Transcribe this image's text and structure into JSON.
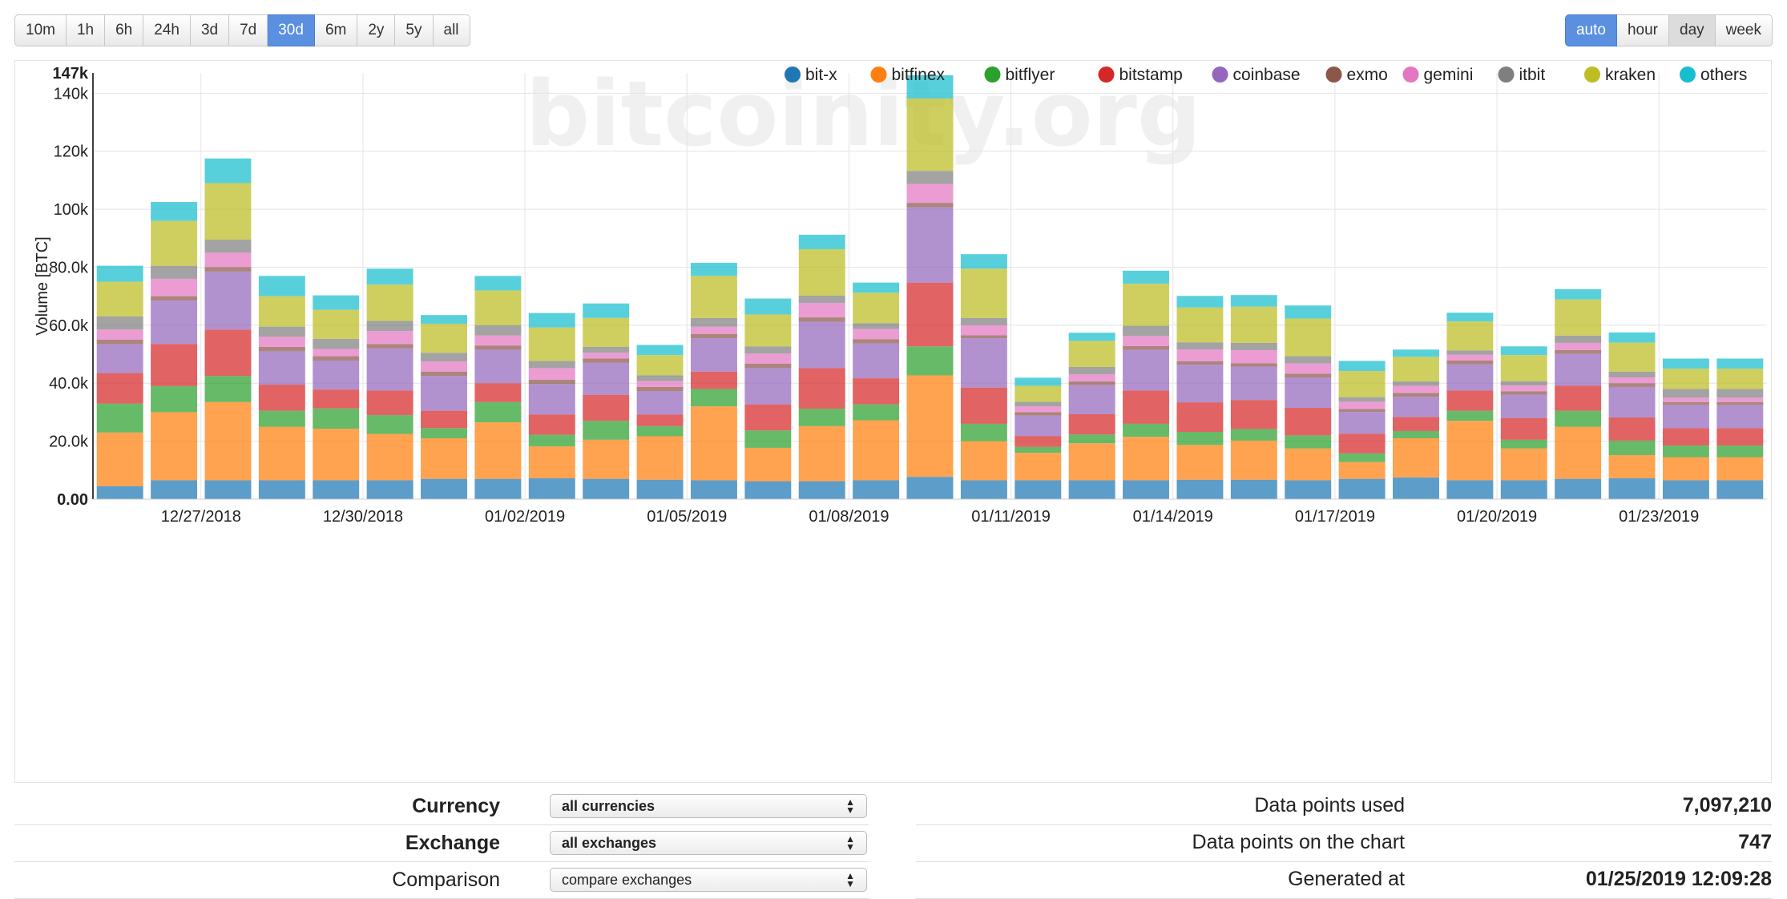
{
  "range_buttons": [
    {
      "label": "10m",
      "active": false
    },
    {
      "label": "1h",
      "active": false
    },
    {
      "label": "6h",
      "active": false
    },
    {
      "label": "24h",
      "active": false
    },
    {
      "label": "3d",
      "active": false
    },
    {
      "label": "7d",
      "active": false
    },
    {
      "label": "30d",
      "active": true
    },
    {
      "label": "6m",
      "active": false
    },
    {
      "label": "2y",
      "active": false
    },
    {
      "label": "5y",
      "active": false
    },
    {
      "label": "all",
      "active": false
    }
  ],
  "period_buttons": [
    {
      "label": "auto",
      "state": "active"
    },
    {
      "label": "hour",
      "state": "normal"
    },
    {
      "label": "day",
      "state": "pressed"
    },
    {
      "label": "week",
      "state": "normal"
    }
  ],
  "watermark": "bitcoinity.org",
  "controls": {
    "currency": {
      "label": "Currency",
      "value": "all currencies"
    },
    "exchange": {
      "label": "Exchange",
      "value": "all exchanges"
    },
    "comparison": {
      "label": "Comparison",
      "value": "compare exchanges"
    }
  },
  "stats": {
    "points_used": {
      "label": "Data points used",
      "value": "7,097,210"
    },
    "points_chart": {
      "label": "Data points on the chart",
      "value": "747"
    },
    "generated": {
      "label": "Generated at",
      "value": "01/25/2019 12:09:28"
    }
  },
  "chart_data": {
    "type": "bar",
    "stacked": true,
    "ylabel": "Volume [BTC]",
    "ylim": [
      0,
      147000
    ],
    "ytick_labels": [
      "0.00",
      "20.0k",
      "40.0k",
      "60.0k",
      "80.0k",
      "100k",
      "120k",
      "140k",
      "147k"
    ],
    "ytick_values": [
      0,
      20000,
      40000,
      60000,
      80000,
      100000,
      120000,
      140000,
      147000
    ],
    "x_tick_labels": [
      {
        "label": "12/27/2018",
        "index": 2
      },
      {
        "label": "12/30/2018",
        "index": 5
      },
      {
        "label": "01/02/2019",
        "index": 8
      },
      {
        "label": "01/05/2019",
        "index": 11
      },
      {
        "label": "01/08/2019",
        "index": 14
      },
      {
        "label": "01/11/2019",
        "index": 17
      },
      {
        "label": "01/14/2019",
        "index": 20
      },
      {
        "label": "01/17/2019",
        "index": 23
      },
      {
        "label": "01/20/2019",
        "index": 26
      },
      {
        "label": "01/23/2019",
        "index": 29
      }
    ],
    "categories": [
      "12/25/2018",
      "12/26/2018",
      "12/27/2018",
      "12/28/2018",
      "12/29/2018",
      "12/30/2018",
      "12/31/2018",
      "01/01/2019",
      "01/02/2019",
      "01/03/2019",
      "01/04/2019",
      "01/05/2019",
      "01/06/2019",
      "01/07/2019",
      "01/08/2019",
      "01/09/2019",
      "01/10/2019",
      "01/11/2019",
      "01/12/2019",
      "01/13/2019",
      "01/14/2019",
      "01/15/2019",
      "01/16/2019",
      "01/17/2019",
      "01/18/2019",
      "01/19/2019",
      "01/20/2019",
      "01/21/2019",
      "01/22/2019",
      "01/23/2019",
      "01/24/2019"
    ],
    "grid": true,
    "legend_position": "top-right",
    "series": [
      {
        "name": "bit-x",
        "color": "#1f77b4",
        "values": [
          4500,
          6500,
          6500,
          6500,
          6500,
          6500,
          7000,
          7000,
          7200,
          7000,
          6700,
          6500,
          6200,
          6200,
          6500,
          7700,
          6500,
          6500,
          6500,
          6500,
          6700,
          6700,
          6500,
          7000,
          7500,
          6500,
          6500,
          7000,
          7200,
          6500,
          6500
        ]
      },
      {
        "name": "bitfinex",
        "color": "#ff7f0e",
        "values": [
          18500,
          23500,
          27000,
          18500,
          17800,
          16000,
          14000,
          19500,
          11000,
          13500,
          15000,
          25500,
          11500,
          19000,
          20700,
          35000,
          13500,
          9500,
          12800,
          15000,
          12000,
          13500,
          11000,
          5800,
          13500,
          20500,
          11000,
          18000,
          8000,
          8000,
          8000
        ]
      },
      {
        "name": "bitflyer",
        "color": "#2ca02c",
        "values": [
          10000,
          9000,
          9000,
          5500,
          7000,
          6500,
          3500,
          7000,
          4000,
          6500,
          3500,
          6000,
          6000,
          6000,
          5500,
          10000,
          6000,
          2000,
          3000,
          4500,
          4500,
          4000,
          4500,
          3000,
          2500,
          3500,
          3000,
          5500,
          5000,
          4000,
          4000
        ]
      },
      {
        "name": "bitstamp",
        "color": "#d62728",
        "values": [
          10500,
          14500,
          16000,
          9000,
          6500,
          8500,
          6000,
          6500,
          7000,
          9000,
          4000,
          6000,
          9000,
          14000,
          9000,
          22000,
          12500,
          3800,
          7000,
          11500,
          10200,
          10000,
          9500,
          6800,
          4800,
          7000,
          7500,
          8600,
          8000,
          6000,
          6000
        ]
      },
      {
        "name": "coinbase",
        "color": "#9467bd",
        "values": [
          10000,
          15000,
          20000,
          11500,
          10000,
          14500,
          12000,
          11500,
          10500,
          11000,
          8000,
          11500,
          12500,
          16000,
          12000,
          26000,
          17000,
          7000,
          10000,
          14000,
          13000,
          11500,
          10500,
          7500,
          7000,
          9000,
          8000,
          11000,
          10500,
          8000,
          8000
        ]
      },
      {
        "name": "exmo",
        "color": "#8c564b",
        "values": [
          1500,
          1500,
          1500,
          1500,
          1500,
          1500,
          1500,
          1500,
          1500,
          1500,
          1500,
          1500,
          1500,
          1500,
          1500,
          1500,
          1000,
          1200,
          1300,
          1300,
          1200,
          1200,
          1300,
          1000,
          1300,
          1300,
          1200,
          1300,
          1300,
          1000,
          1000
        ]
      },
      {
        "name": "gemini",
        "color": "#e377c2",
        "values": [
          3500,
          6000,
          5000,
          3500,
          2500,
          4500,
          3500,
          3500,
          4000,
          2000,
          2000,
          2500,
          3500,
          5000,
          3500,
          6500,
          3500,
          2000,
          2500,
          3500,
          4000,
          4500,
          3500,
          2500,
          2500,
          2000,
          2000,
          2500,
          2000,
          1500,
          1500
        ]
      },
      {
        "name": "itbit",
        "color": "#7f7f7f",
        "values": [
          4500,
          4500,
          4500,
          3500,
          3500,
          3500,
          3000,
          3500,
          2500,
          2000,
          2000,
          3000,
          2500,
          2500,
          2000,
          4500,
          2500,
          1600,
          2500,
          3500,
          2500,
          2500,
          2500,
          1600,
          1500,
          1500,
          1500,
          2500,
          2000,
          3000,
          3000
        ]
      },
      {
        "name": "kraken",
        "color": "#bcbd22",
        "values": [
          12000,
          15500,
          19500,
          10500,
          10000,
          12500,
          10000,
          12000,
          11500,
          10000,
          7000,
          14500,
          11000,
          16000,
          10500,
          25000,
          17000,
          5500,
          9000,
          14500,
          12000,
          12500,
          13000,
          9000,
          8500,
          10000,
          9000,
          12500,
          10000,
          7000,
          7000
        ]
      },
      {
        "name": "others",
        "color": "#17becf",
        "values": [
          5500,
          6500,
          8500,
          7000,
          5000,
          5500,
          3000,
          5000,
          5000,
          5000,
          3500,
          4500,
          5500,
          5000,
          3500,
          8000,
          5000,
          2800,
          2800,
          4500,
          4000,
          4000,
          4500,
          3500,
          2500,
          3000,
          3000,
          3500,
          3500,
          3500,
          3500
        ]
      }
    ]
  }
}
